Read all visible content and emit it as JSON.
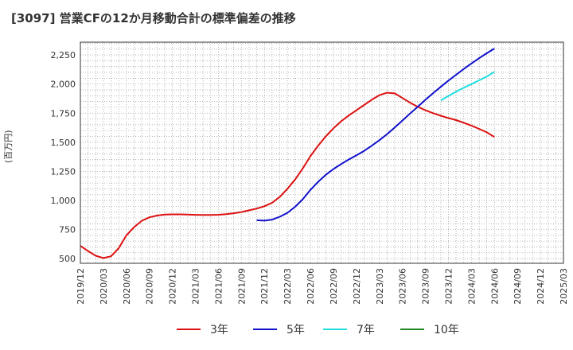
{
  "title": "[3097]  営業CFの12か月移動合計の標準偏差の推移",
  "chart_data": {
    "type": "line",
    "title": "[3097]  営業CFの12か月移動合計の標準偏差の推移",
    "xlabel": "",
    "ylabel": "(百万円)",
    "ylim": [
      460,
      2360
    ],
    "yticks": [
      500,
      750,
      1000,
      1250,
      1500,
      1750,
      2000,
      2250
    ],
    "ytick_labels": [
      "500",
      "750",
      "1,000",
      "1,250",
      "1,500",
      "1,750",
      "2,000",
      "2,250"
    ],
    "xticks": [
      "2019/12",
      "2020/03",
      "2020/06",
      "2020/09",
      "2020/12",
      "2021/03",
      "2021/06",
      "2021/09",
      "2021/12",
      "2022/03",
      "2022/06",
      "2022/09",
      "2022/12",
      "2023/03",
      "2023/06",
      "2023/09",
      "2023/12",
      "2024/03",
      "2024/06",
      "2024/09",
      "2024/12",
      "2025/03"
    ],
    "grid": true,
    "legend_position": "bottom",
    "series": [
      {
        "name": "3年",
        "color": "#dd1111",
        "x": [
          "2019/12",
          "2020/01",
          "2020/02",
          "2020/03",
          "2020/04",
          "2020/05",
          "2020/06",
          "2020/07",
          "2020/08",
          "2020/09",
          "2020/10",
          "2020/11",
          "2020/12",
          "2021/01",
          "2021/02",
          "2021/03",
          "2021/04",
          "2021/05",
          "2021/06",
          "2021/07",
          "2021/08",
          "2021/09",
          "2021/10",
          "2021/11",
          "2021/12",
          "2022/01",
          "2022/02",
          "2022/03",
          "2022/04",
          "2022/05",
          "2022/06",
          "2022/07",
          "2022/08",
          "2022/09",
          "2022/10",
          "2022/11",
          "2022/12",
          "2023/01",
          "2023/02",
          "2023/03",
          "2023/04",
          "2023/05",
          "2023/06",
          "2023/07",
          "2023/08",
          "2023/09",
          "2023/10",
          "2023/11",
          "2023/12",
          "2024/01",
          "2024/02",
          "2024/03",
          "2024/04",
          "2024/05",
          "2024/06"
        ],
        "values": [
          610,
          565,
          525,
          505,
          520,
          590,
          700,
          770,
          825,
          855,
          870,
          878,
          880,
          880,
          878,
          876,
          875,
          875,
          877,
          882,
          890,
          900,
          915,
          930,
          950,
          980,
          1030,
          1100,
          1180,
          1275,
          1380,
          1470,
          1550,
          1620,
          1680,
          1730,
          1775,
          1820,
          1865,
          1905,
          1925,
          1920,
          1880,
          1840,
          1805,
          1775,
          1750,
          1728,
          1708,
          1690,
          1668,
          1643,
          1615,
          1585,
          1545
        ]
      },
      {
        "name": "5年",
        "color": "#1111cc",
        "x": [
          "2021/11",
          "2021/12",
          "2022/01",
          "2022/02",
          "2022/03",
          "2022/04",
          "2022/05",
          "2022/06",
          "2022/07",
          "2022/08",
          "2022/09",
          "2022/10",
          "2022/11",
          "2022/12",
          "2023/01",
          "2023/02",
          "2023/03",
          "2023/04",
          "2023/05",
          "2023/06",
          "2023/07",
          "2023/08",
          "2023/09",
          "2023/10",
          "2023/11",
          "2023/12",
          "2024/01",
          "2024/02",
          "2024/03",
          "2024/04",
          "2024/05",
          "2024/06"
        ],
        "values": [
          830,
          826,
          835,
          860,
          893,
          945,
          1010,
          1090,
          1160,
          1220,
          1270,
          1312,
          1352,
          1388,
          1426,
          1470,
          1518,
          1570,
          1627,
          1687,
          1747,
          1805,
          1865,
          1922,
          1976,
          2030,
          2080,
          2130,
          2177,
          2222,
          2265,
          2305
        ]
      },
      {
        "name": "7年",
        "color": "#22dddd",
        "x": [
          "2023/11",
          "2023/12",
          "2024/01",
          "2024/02",
          "2024/03",
          "2024/04",
          "2024/05",
          "2024/06"
        ],
        "values": [
          1860,
          1898,
          1935,
          1968,
          2000,
          2032,
          2065,
          2105
        ]
      },
      {
        "name": "10年",
        "color": "#228822",
        "x": [],
        "values": []
      }
    ]
  }
}
